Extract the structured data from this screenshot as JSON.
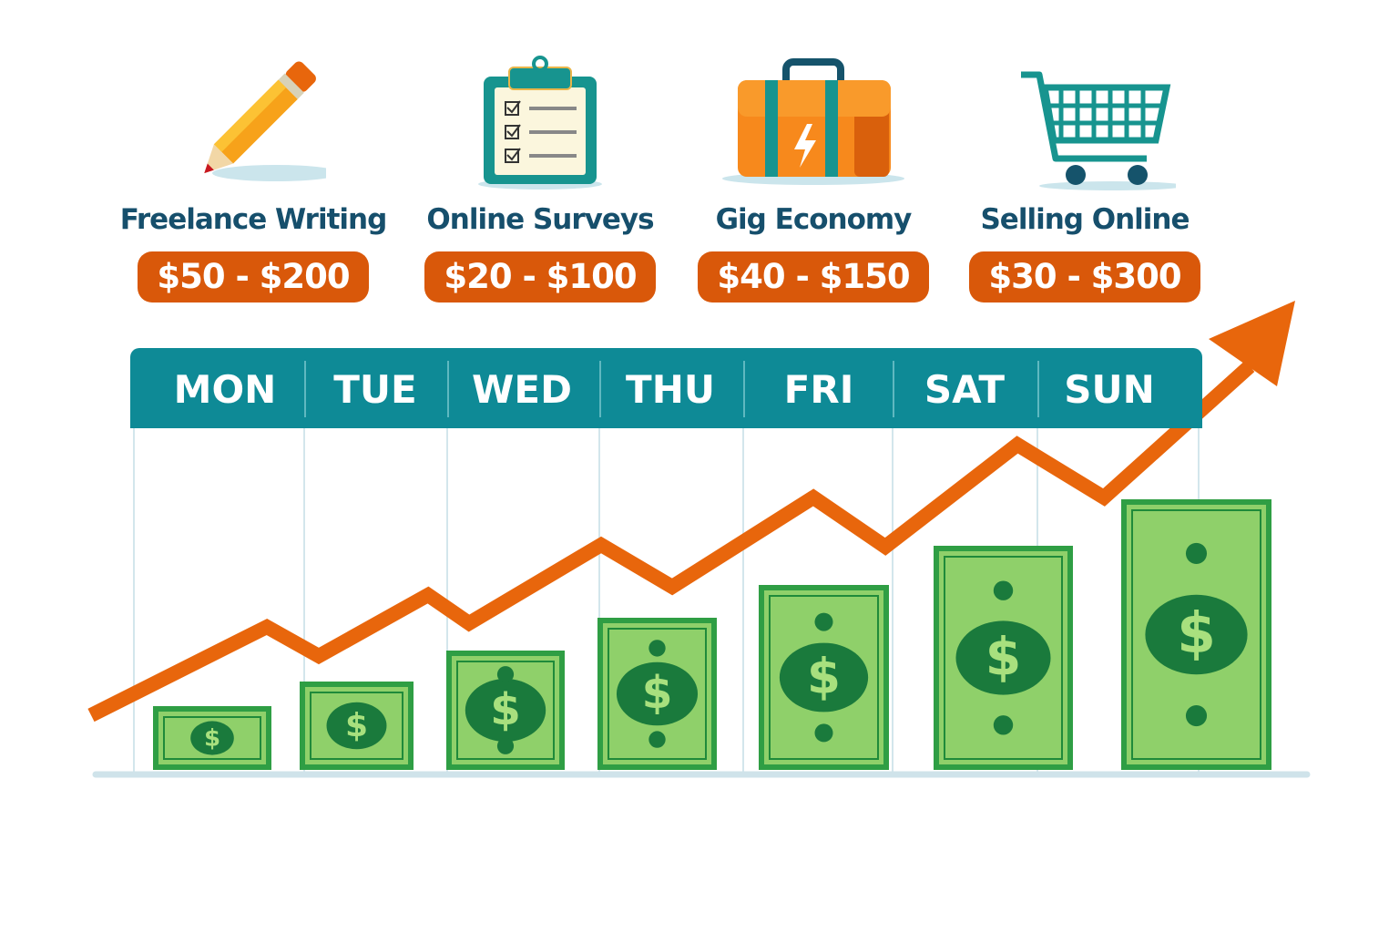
{
  "cards": [
    {
      "title": "Freelance Writing",
      "range": "$50 - $200",
      "icon": "pencil-icon"
    },
    {
      "title": "Online Surveys",
      "range": "$20 - $100",
      "icon": "clipboard-checklist-icon"
    },
    {
      "title": "Gig Economy",
      "range": "$40 - $150",
      "icon": "briefcase-lightning-icon"
    },
    {
      "title": "Selling Online",
      "range": "$30 - $300",
      "icon": "shopping-cart-icon"
    }
  ],
  "days": [
    "MON",
    "TUE",
    "WED",
    "THU",
    "FRI",
    "SAT",
    "SUN"
  ],
  "colors": {
    "teal": "#0e8a96",
    "orange": "#e8660c",
    "pill": "#d9580a",
    "navy": "#164f6c",
    "bill_green": "#2f9e44",
    "bill_light": "#8fd06a"
  }
}
